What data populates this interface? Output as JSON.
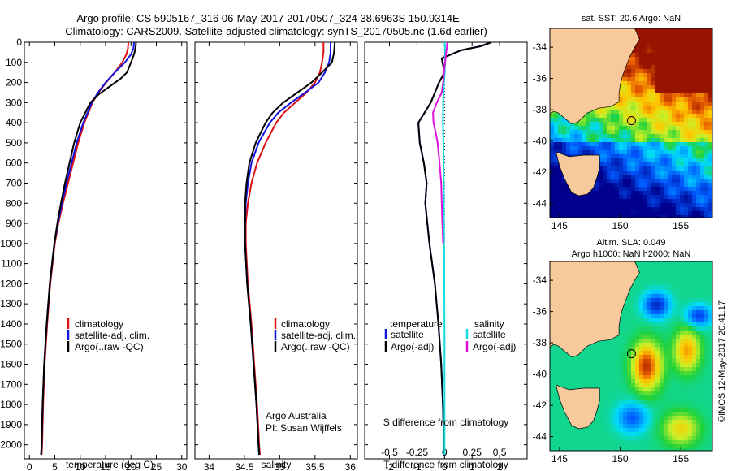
{
  "title": {
    "line1": "Argo profile: CS 5905167_316 06-May-2017 20170507_324 38.6963S 150.9314E",
    "line2": "Climatology: CARS2009. Satellite-adjusted climatology: synTS_20170505.nc (1.6d earlier)"
  },
  "colors": {
    "climatology": "#dd1111",
    "satellite": "#1111dd",
    "argo": "#000000",
    "sal_satellite": "#11dddd",
    "sal_argo": "#dd11dd",
    "land": "#f7c99b",
    "background": "#ffffff"
  },
  "legend_tp": {
    "climatology": "climatology",
    "satellite": "satellite-adj. clim.",
    "argo": "Argo(..raw -QC)"
  },
  "legend_diff": {
    "temperature_head": "temperature",
    "salinity_head": "salinity",
    "satellite": "satellite",
    "argo": "Argo(-adj)"
  },
  "annotations": {
    "agency": "Argo Australia",
    "pi": "PI: Susan Wijffels",
    "diff_top_label": "S difference from climatology",
    "sst_title": "sat. SST: 20.6  Argo: NaN",
    "sla_title_1": "Altim. SLA: 0.049",
    "sla_title_2": "Argo h1000: NaN h2000: NaN",
    "credit": "©IMOS 12-May-2017 20:41:17"
  },
  "map_ticks": {
    "lat": [
      "-34",
      "-36",
      "-38",
      "-40",
      "-42",
      "-44"
    ],
    "lon": [
      "145",
      "150",
      "155"
    ]
  },
  "chart_data": [
    {
      "type": "line",
      "name": "temperature",
      "xlabel": "temperature (deg C)",
      "ylabel": "",
      "xlim": [
        -1,
        31
      ],
      "ylim": [
        2070,
        0
      ],
      "xticks": [
        0,
        5,
        10,
        15,
        20,
        25,
        30
      ],
      "yticks": [
        0,
        100,
        200,
        300,
        400,
        500,
        600,
        700,
        800,
        900,
        1000,
        1100,
        1200,
        1300,
        1400,
        1500,
        1600,
        1700,
        1800,
        1900,
        2000
      ],
      "series": [
        {
          "key": "climatology",
          "depth": [
            0,
            30,
            60,
            100,
            150,
            200,
            250,
            300,
            400,
            500,
            600,
            700,
            800,
            900,
            1000,
            1200,
            1400,
            1600,
            1800,
            2000,
            2050
          ],
          "values": [
            19.5,
            19.4,
            19.1,
            18.3,
            16.8,
            15.1,
            13.6,
            12.4,
            10.8,
            9.6,
            8.6,
            7.6,
            6.6,
            5.7,
            5.0,
            4.1,
            3.5,
            3.0,
            2.7,
            2.5,
            2.4
          ]
        },
        {
          "key": "satellite",
          "depth": [
            0,
            30,
            60,
            100,
            150,
            200,
            250,
            300,
            400,
            500,
            600,
            700,
            800,
            900,
            1000,
            1200,
            1400,
            1600,
            1800,
            2000,
            2050
          ],
          "values": [
            20.6,
            20.5,
            20.0,
            18.8,
            16.8,
            15.0,
            13.5,
            12.3,
            10.6,
            9.3,
            8.3,
            7.3,
            6.4,
            5.6,
            4.9,
            4.0,
            3.4,
            2.9,
            2.6,
            2.4,
            2.3
          ]
        },
        {
          "key": "argo",
          "depth": [
            0,
            30,
            60,
            100,
            150,
            180,
            220,
            260,
            300,
            400,
            500,
            600,
            700,
            800,
            900,
            1000,
            1200,
            1400,
            1600,
            1800,
            2000,
            2050
          ],
          "values": [
            21.0,
            20.9,
            20.6,
            20.0,
            19.2,
            18.0,
            15.8,
            13.6,
            12.0,
            10.0,
            8.8,
            7.9,
            7.0,
            6.2,
            5.5,
            4.9,
            4.0,
            3.4,
            2.9,
            2.6,
            2.4,
            2.3
          ]
        }
      ]
    },
    {
      "type": "line",
      "name": "salinity",
      "xlabel": "salinity",
      "ylabel": "",
      "xlim": [
        33.8,
        36.1
      ],
      "ylim": [
        2070,
        0
      ],
      "xticks": [
        34,
        34.5,
        35,
        35.5,
        36
      ],
      "series": [
        {
          "key": "climatology",
          "depth": [
            0,
            50,
            100,
            150,
            200,
            250,
            300,
            350,
            400,
            500,
            600,
            700,
            800,
            900,
            1000,
            1200,
            1400,
            1600,
            1800,
            2000,
            2050
          ],
          "values": [
            35.62,
            35.62,
            35.6,
            35.57,
            35.5,
            35.38,
            35.22,
            35.06,
            34.95,
            34.8,
            34.68,
            34.6,
            34.55,
            34.52,
            34.52,
            34.55,
            34.6,
            34.64,
            34.68,
            34.71,
            34.72
          ]
        },
        {
          "key": "satellite",
          "depth": [
            0,
            50,
            100,
            150,
            200,
            250,
            300,
            350,
            400,
            500,
            600,
            700,
            800,
            900,
            1000,
            1200,
            1400,
            1600,
            1800,
            2000,
            2050
          ],
          "values": [
            35.72,
            35.72,
            35.7,
            35.64,
            35.55,
            35.36,
            35.16,
            34.98,
            34.86,
            34.7,
            34.6,
            34.55,
            34.52,
            34.51,
            34.51,
            34.54,
            34.59,
            34.63,
            34.67,
            34.7,
            34.71
          ]
        },
        {
          "key": "argo",
          "depth": [
            0,
            50,
            100,
            150,
            200,
            250,
            300,
            350,
            400,
            500,
            600,
            700,
            800,
            900,
            1000,
            1200,
            1400,
            1600,
            1800,
            2000,
            2050
          ],
          "values": [
            35.78,
            35.77,
            35.74,
            35.6,
            35.45,
            35.25,
            35.05,
            34.9,
            34.8,
            34.66,
            34.57,
            34.53,
            34.51,
            34.51,
            34.51,
            34.54,
            34.59,
            34.63,
            34.67,
            34.7,
            34.71
          ]
        }
      ]
    },
    {
      "type": "line",
      "name": "difference",
      "xlabel": "T difference from climatology",
      "ylabel": "",
      "xlim": [
        -2.9,
        3.0
      ],
      "ylim": [
        2070,
        0
      ],
      "xticks": [
        -2,
        -1,
        0,
        1,
        2
      ],
      "xticks_top": [
        -0.5,
        -0.25,
        0,
        0.25,
        0.5
      ],
      "series": [
        {
          "key": "satellite",
          "depth": [
            0,
            20,
            40,
            80,
            150,
            200,
            300,
            400,
            500,
            600,
            700,
            800,
            1000,
            1200,
            1400,
            1600,
            1800,
            2000,
            2050
          ],
          "values": [
            1.7,
            1.3,
            0.6,
            -0.1,
            0.0,
            -0.2,
            -0.5,
            -0.95,
            -0.9,
            -0.75,
            -0.65,
            -0.7,
            -0.55,
            -0.35,
            -0.22,
            -0.12,
            -0.06,
            -0.02,
            0.0
          ]
        },
        {
          "key": "argo",
          "depth": [
            0,
            20,
            40,
            80,
            150,
            200,
            300,
            400,
            500,
            600,
            700,
            800,
            1000,
            1200,
            1400,
            1600,
            1800,
            2000,
            2050
          ],
          "values": [
            1.7,
            1.3,
            0.6,
            -0.1,
            0.0,
            -0.2,
            -0.5,
            -0.95,
            -0.9,
            -0.75,
            -0.65,
            -0.7,
            -0.55,
            -0.35,
            -0.22,
            -0.12,
            -0.06,
            -0.02,
            0.0
          ]
        },
        {
          "key": "sal_satellite",
          "depth": [
            0,
            50,
            100,
            150,
            200,
            300,
            400,
            500,
            700,
            900,
            1200,
            1500,
            1800,
            2050
          ],
          "values": [
            0.01,
            0.02,
            0.02,
            0.01,
            -0.02,
            -0.05,
            -0.06,
            -0.04,
            -0.03,
            -0.02,
            -0.01,
            0.0,
            0.0,
            0.0
          ]
        },
        {
          "key": "sal_argo",
          "depth": [
            0,
            30,
            60,
            100,
            150,
            200,
            250,
            300,
            350,
            400,
            450,
            500,
            600,
            700,
            800,
            900,
            1000
          ],
          "values": [
            0.1,
            0.08,
            0.05,
            0.02,
            -0.02,
            -0.05,
            -0.1,
            -0.28,
            -0.42,
            -0.4,
            -0.32,
            -0.25,
            -0.18,
            -0.12,
            -0.1,
            -0.08,
            -0.05
          ]
        }
      ]
    }
  ]
}
